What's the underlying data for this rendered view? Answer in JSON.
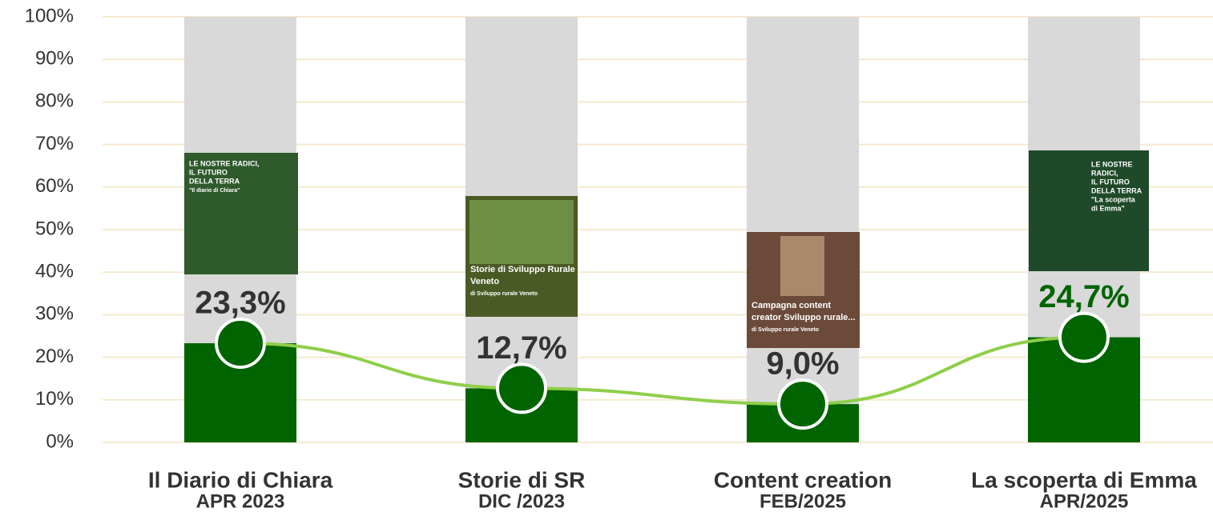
{
  "chart_data": {
    "type": "bar",
    "categories": [
      "Il Diario di Chiara",
      "Storie di SR",
      "Content creation",
      "La scoperta di Emma"
    ],
    "dates": [
      "APR 2023",
      "DIC /2023",
      "FEB/2025",
      "APR/2025"
    ],
    "values": [
      23.3,
      12.7,
      9.0,
      24.7
    ],
    "value_labels": [
      "23,3%",
      "12,7%",
      "9,0%",
      "24,7%"
    ],
    "color": "#006400",
    "background_color": "#d9d9d9",
    "line_color": "#8fce4a",
    "label_colors": [
      "#333333",
      "#333333",
      "#333333",
      "#006400"
    ],
    "ylim": [
      0,
      100
    ],
    "yticks": [
      {
        "value": 0,
        "label": "0%"
      },
      {
        "value": 10,
        "label": "10%"
      },
      {
        "value": 20,
        "label": "20%"
      },
      {
        "value": 30,
        "label": "30%"
      },
      {
        "value": 40,
        "label": "40%"
      },
      {
        "value": 50,
        "label": "50%"
      },
      {
        "value": 60,
        "label": "60%"
      },
      {
        "value": 70,
        "label": "70%"
      },
      {
        "value": 80,
        "label": "80%"
      },
      {
        "value": 90,
        "label": "90%"
      },
      {
        "value": 100,
        "label": "100%"
      }
    ],
    "grid": true,
    "thumbnails": [
      {
        "color": "#2f5a2c",
        "texts": [
          "LE NOSTRE RADICI,",
          "IL FUTURO",
          "DELLA TERRA",
          "\"Il diario di Chiara\""
        ]
      },
      {
        "color": "#4a5a24",
        "texts": [
          "Storie di Sviluppo Rurale",
          "Veneto",
          "di Sviluppo rurale Veneto"
        ]
      },
      {
        "color": "#6b4a3a",
        "texts": [
          "Campagna content",
          "creator Sviluppo rurale...",
          "di Sviluppo rurale Veneto"
        ]
      },
      {
        "color": "#1f4a2a",
        "texts": [
          "LE NOSTRE",
          "RADICI,",
          "IL FUTURO",
          "DELLA TERRA",
          "\"La scoperta",
          "di Emma\""
        ]
      }
    ]
  }
}
